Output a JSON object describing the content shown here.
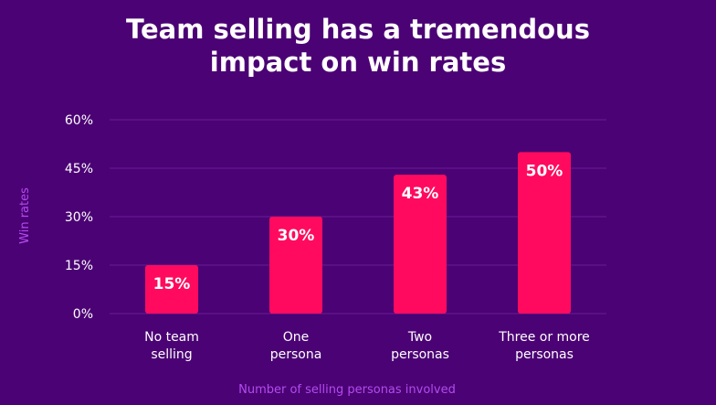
{
  "chart_data": {
    "type": "bar",
    "title_lines": [
      "Team selling has a tremendous",
      "impact on win rates"
    ],
    "categories": [
      [
        "No team",
        "selling"
      ],
      [
        "One",
        "persona"
      ],
      [
        "Two",
        "personas"
      ],
      [
        "Three or more",
        "personas"
      ]
    ],
    "values": [
      15,
      30,
      43,
      50
    ],
    "value_labels": [
      "15%",
      "30%",
      "43%",
      "50%"
    ],
    "yticks": [
      0,
      15,
      30,
      45,
      60
    ],
    "ytick_labels": [
      "0%",
      "15%",
      "30%",
      "45%",
      "60%"
    ],
    "ylim": [
      0,
      60
    ],
    "xlabel": "Number of selling personas involved",
    "ylabel": "Win rates",
    "grid": true,
    "legend": false,
    "colors": {
      "background": "#4B0274",
      "bar": "#FF0A5E",
      "grid": "#6A1E94",
      "axis_title": "#B34BF0",
      "text": "#FFFFFF"
    }
  }
}
